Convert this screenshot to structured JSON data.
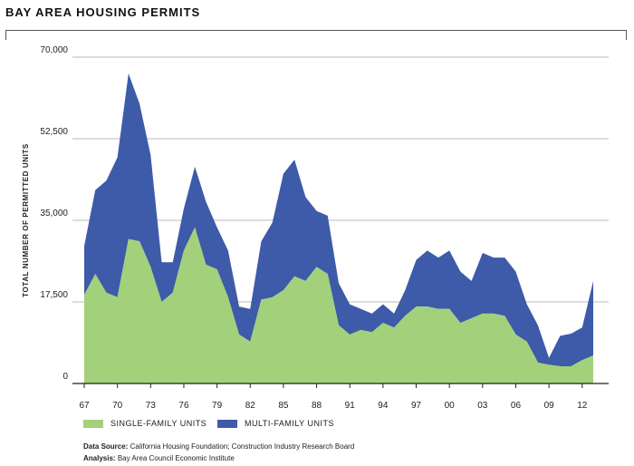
{
  "title": "BAY AREA HOUSING PERMITS",
  "colors": {
    "single": "#a3d07a",
    "multi": "#3d5ba8",
    "grid": "#bbbbbb",
    "axis": "#222222"
  },
  "legend": {
    "single": "SINGLE-FAMILY UNITS",
    "multi": "MULTI-FAMILY UNITS"
  },
  "notes": {
    "source_label": "Data Source:",
    "source_text": "California Housing Foundation; Construction Industry Research Board",
    "analysis_label": "Analysis:",
    "analysis_text": "Bay Area Council Economic Institute"
  },
  "chart_data": {
    "type": "area",
    "stacked": true,
    "title": "BAY AREA HOUSING PERMITS",
    "ylabel": "TOTAL NUMBER OF PERMITTED UNITS",
    "xlabel": "",
    "ylim": [
      0,
      70000
    ],
    "yticks": [
      0,
      17500,
      35000,
      52500,
      70000
    ],
    "ytick_labels": [
      "0",
      "17,500",
      "35,000",
      "52,500",
      "70,000"
    ],
    "xtick_labels": [
      "67",
      "70",
      "73",
      "76",
      "79",
      "82",
      "85",
      "88",
      "91",
      "94",
      "97",
      "00",
      "03",
      "06",
      "09",
      "12"
    ],
    "x": [
      1967,
      1968,
      1969,
      1970,
      1971,
      1972,
      1973,
      1974,
      1975,
      1976,
      1977,
      1978,
      1979,
      1980,
      1981,
      1982,
      1983,
      1984,
      1985,
      1986,
      1987,
      1988,
      1989,
      1990,
      1991,
      1992,
      1993,
      1994,
      1995,
      1996,
      1997,
      1998,
      1999,
      2000,
      2001,
      2002,
      2003,
      2004,
      2005,
      2006,
      2007,
      2008,
      2009,
      2010,
      2011,
      2012,
      2013
    ],
    "series": [
      {
        "name": "SINGLE-FAMILY UNITS",
        "values": [
          19000,
          23500,
          19500,
          18500,
          31000,
          30500,
          25000,
          17500,
          19500,
          28500,
          33500,
          25500,
          24500,
          18500,
          10500,
          9000,
          18000,
          18500,
          20000,
          23000,
          22000,
          25000,
          23500,
          12500,
          10500,
          11500,
          11000,
          13000,
          12000,
          14500,
          16500,
          16500,
          16000,
          16000,
          13000,
          14000,
          15000,
          15000,
          14500,
          10500,
          9000,
          4500,
          4000,
          3700,
          3700,
          5000,
          6000
        ]
      },
      {
        "name": "MULTI-FAMILY UNITS",
        "values": [
          10500,
          18000,
          24000,
          30000,
          35500,
          29500,
          24000,
          8500,
          6500,
          9000,
          13000,
          13500,
          9000,
          10000,
          6000,
          7000,
          12500,
          16000,
          25000,
          25000,
          18000,
          12000,
          12500,
          9000,
          6500,
          4500,
          4000,
          4000,
          3000,
          5500,
          10000,
          12000,
          11000,
          12500,
          11000,
          8000,
          13000,
          12000,
          12500,
          13500,
          8000,
          8000,
          1500,
          6500,
          7000,
          7000,
          16000
        ]
      }
    ]
  }
}
